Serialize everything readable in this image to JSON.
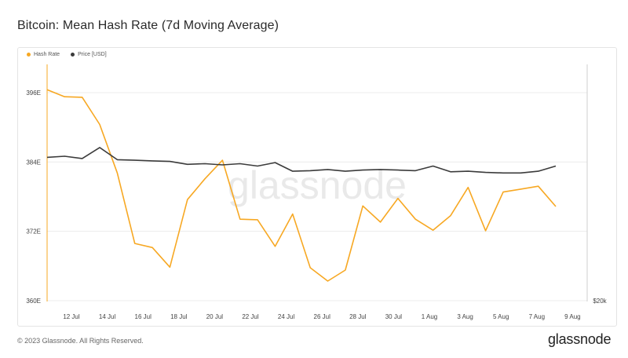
{
  "title": "Bitcoin: Mean Hash Rate (7d Moving Average)",
  "footer": {
    "copyright": "© 2023 Glassnode. All Rights Reserved.",
    "logo": "glassnode"
  },
  "watermark": "glassnode",
  "colors": {
    "hash_rate": "#f7a823",
    "price": "#3b3b3b",
    "grid": "#ececec",
    "axis_text": "#444"
  },
  "chart_data": {
    "type": "line",
    "series": [
      {
        "name": "Hash Rate",
        "values": [
          396.5,
          395.3,
          395.2,
          390.5,
          382.1,
          369.9,
          369.2,
          365.8,
          377.5,
          381.1,
          384.3,
          374.1,
          374.0,
          369.4,
          375.0,
          365.7,
          363.4,
          365.3,
          376.4,
          373.6,
          377.7,
          374.1,
          372.2,
          374.7,
          379.6,
          372.1,
          378.8,
          379.3,
          379.8,
          376.3
        ]
      },
      {
        "name": "Price [USD]",
        "values": [
          384.8,
          385.0,
          384.6,
          386.5,
          384.4,
          384.3,
          384.2,
          384.1,
          383.6,
          383.7,
          383.5,
          383.7,
          383.3,
          383.9,
          382.4,
          382.5,
          382.7,
          382.4,
          382.6,
          382.7,
          382.6,
          382.5,
          383.3,
          382.3,
          382.4,
          382.2,
          382.1,
          382.1,
          382.4,
          383.3
        ]
      }
    ],
    "x_tick_labels": [
      "12 Jul",
      "14 Jul",
      "16 Jul",
      "18 Jul",
      "20 Jul",
      "22 Jul",
      "24 Jul",
      "26 Jul",
      "28 Jul",
      "30 Jul",
      "1 Aug",
      "3 Aug",
      "5 Aug",
      "7 Aug",
      "9 Aug"
    ],
    "y_ticks": [
      "360E",
      "372E",
      "384E",
      "396E"
    ],
    "ylim": [
      360,
      396
    ],
    "right_axis_label": "$20k",
    "grid": true,
    "legend_position": "top-left"
  }
}
